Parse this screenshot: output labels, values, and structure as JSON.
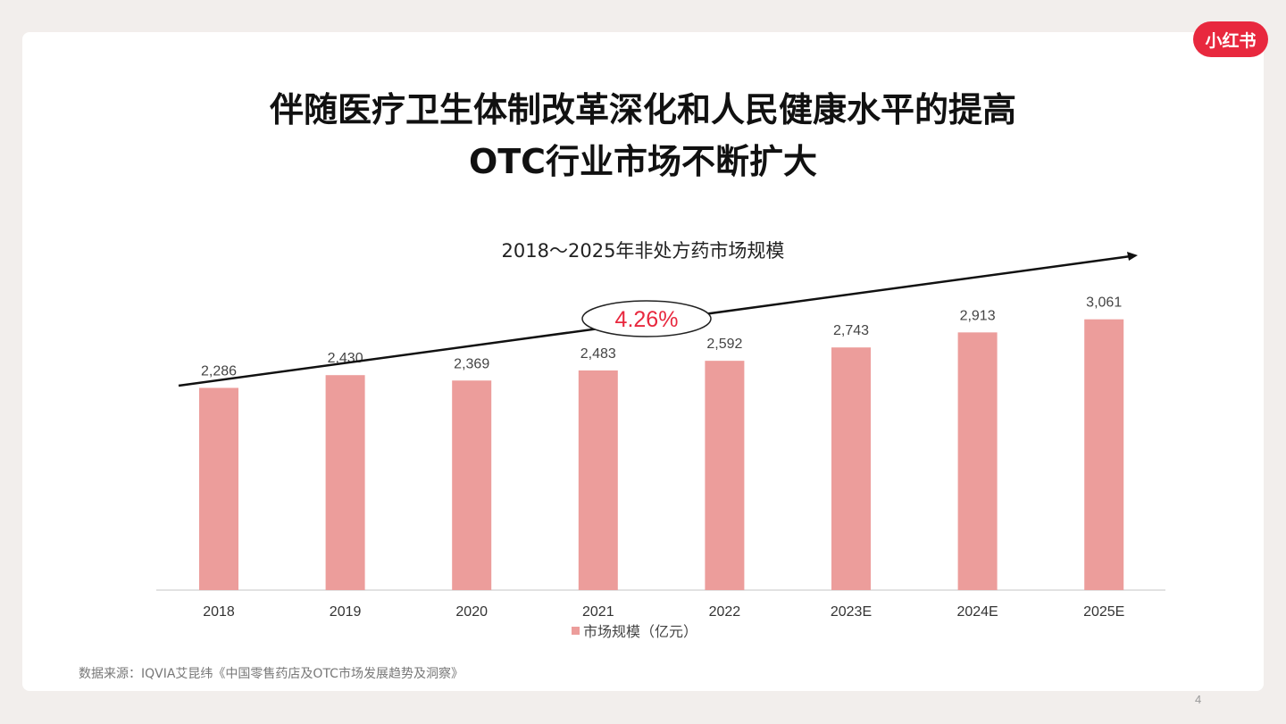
{
  "logo": "小红书",
  "title_line1": "伴随医疗卫生体制改革深化和人民健康水平的提高",
  "title_line2": "OTC行业市场不断扩大",
  "source": "数据来源：IQVIA艾昆纬《中国零售药店及OTC市场发展趋势及洞察》",
  "page_number": "4",
  "chart_data": {
    "type": "bar",
    "title": "2018～2025年非处方药市场规模",
    "categories": [
      "2018",
      "2019",
      "2020",
      "2021",
      "2022",
      "2023E",
      "2024E",
      "2025E"
    ],
    "series": [
      {
        "name": "市场规模（亿元）",
        "values": [
          2286,
          2430,
          2369,
          2483,
          2592,
          2743,
          2913,
          3061
        ],
        "labels": [
          "2,286",
          "2,430",
          "2,369",
          "2,483",
          "2,592",
          "2,743",
          "2,913",
          "3,061"
        ]
      }
    ],
    "annotation": "4.26%",
    "ylim": [
      0,
      3300
    ],
    "colors": {
      "bar": "#ec9d9b",
      "annotation": "#e8283e"
    },
    "grid": false,
    "legend_position": "bottom"
  }
}
